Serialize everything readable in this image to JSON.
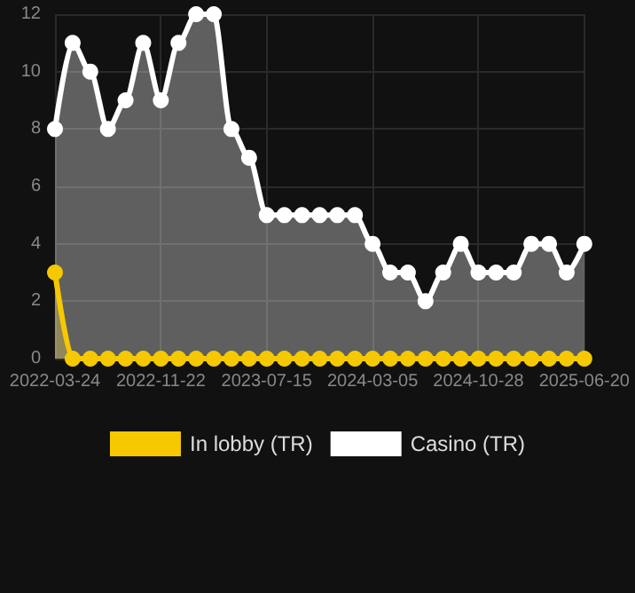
{
  "chart_data": {
    "type": "area",
    "categories": [
      "2022-03-24",
      null,
      null,
      null,
      null,
      null,
      "2022-11-22",
      null,
      null,
      null,
      null,
      null,
      "2023-07-15",
      null,
      null,
      null,
      null,
      null,
      "2024-03-05",
      null,
      null,
      null,
      null,
      null,
      "2024-10-28",
      null,
      null,
      null,
      null,
      null,
      "2025-06-20"
    ],
    "series": [
      {
        "name": "In lobby (TR)",
        "color": "#f5c800",
        "values": [
          3,
          0,
          0,
          0,
          0,
          0,
          0,
          0,
          0,
          0,
          0,
          0,
          0,
          0,
          0,
          0,
          0,
          0,
          0,
          0,
          0,
          0,
          0,
          0,
          0,
          0,
          0,
          0,
          0,
          0,
          0
        ]
      },
      {
        "name": "Casino (TR)",
        "color": "#ffffff",
        "values": [
          8,
          11,
          10,
          8,
          9,
          11,
          9,
          11,
          12,
          12,
          8,
          7,
          5,
          5,
          5,
          5,
          5,
          5,
          4,
          3,
          3,
          2,
          3,
          4,
          3,
          3,
          3,
          4,
          4,
          3,
          4
        ]
      }
    ],
    "ylim": [
      0,
      12
    ],
    "yticks": [
      0,
      2,
      4,
      6,
      8,
      10,
      12
    ],
    "grid": true,
    "legend": "bottom",
    "marker": "circle"
  }
}
